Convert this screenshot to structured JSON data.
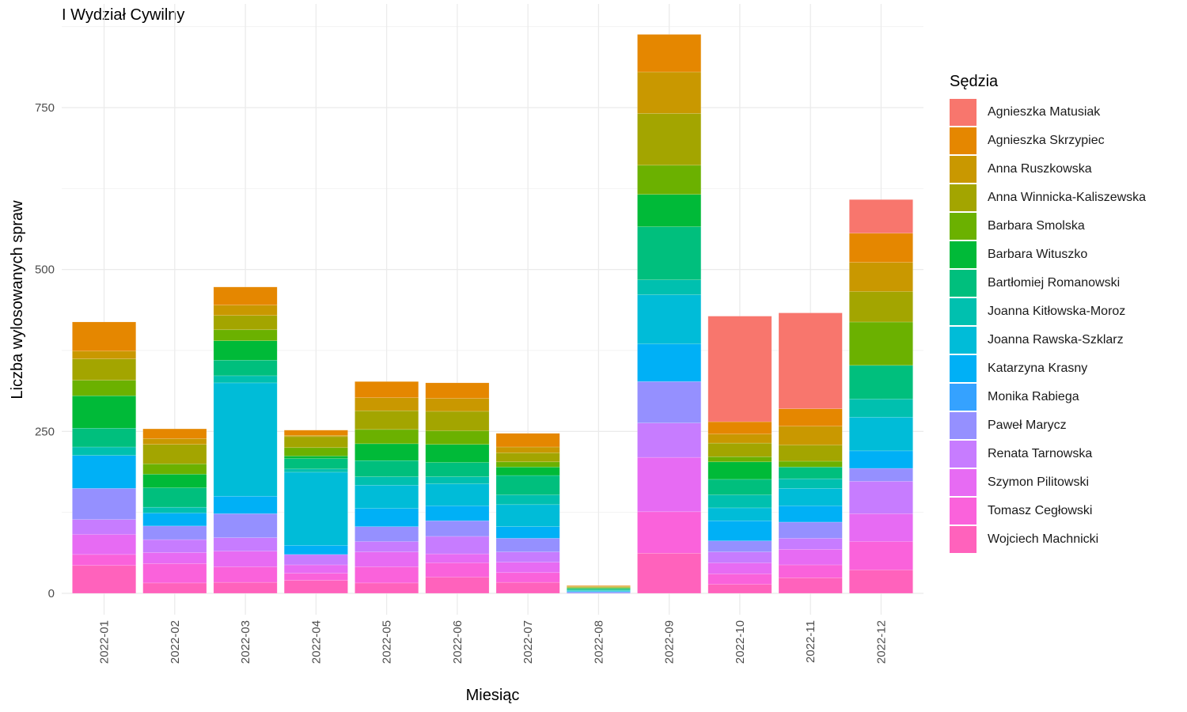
{
  "chart_data": {
    "type": "bar",
    "stacked": true,
    "title": "I Wydział Cywilny",
    "xlabel": "Miesiąc",
    "ylabel": "Liczba wylosowanych spraw",
    "ylim": [
      0,
      880
    ],
    "yticks": [
      0,
      250,
      500,
      750
    ],
    "grid": true,
    "legend_title": "Sędzia",
    "legend_position": "right",
    "categories": [
      "2022-01",
      "2022-02",
      "2022-03",
      "2022-04",
      "2022-05",
      "2022-06",
      "2022-07",
      "2022-08",
      "2022-09",
      "2022-10",
      "2022-11",
      "2022-12"
    ],
    "series": [
      {
        "name": "Agnieszka Matusiak",
        "color": "#F8766D",
        "values": [
          0,
          0,
          0,
          0,
          0,
          0,
          0,
          0,
          0,
          163,
          148,
          52
        ]
      },
      {
        "name": "Agnieszka Skrzypiec",
        "color": "#E58700",
        "values": [
          45,
          15,
          28,
          8,
          25,
          24,
          21,
          1,
          58,
          19,
          27,
          45
        ]
      },
      {
        "name": "Anna Ruszkowska",
        "color": "#C99800",
        "values": [
          12,
          9,
          16,
          2,
          20,
          20,
          9,
          1,
          64,
          14,
          29,
          45
        ]
      },
      {
        "name": "Anna Winnicka-Kaliszewska",
        "color": "#A3A500",
        "values": [
          33,
          30,
          22,
          17,
          29,
          30,
          14,
          1,
          80,
          21,
          25,
          47
        ]
      },
      {
        "name": "Barbara Smolska",
        "color": "#6BB100",
        "values": [
          24,
          16,
          17,
          13,
          22,
          21,
          8,
          1,
          45,
          8,
          9,
          67
        ]
      },
      {
        "name": "Barbara Wituszko",
        "color": "#00BA38",
        "values": [
          50,
          21,
          30,
          4,
          26,
          28,
          13,
          1,
          50,
          27,
          0,
          0
        ]
      },
      {
        "name": "Bartłomiej Romanowski",
        "color": "#00BF7D",
        "values": [
          29,
          30,
          24,
          16,
          25,
          22,
          30,
          2,
          82,
          24,
          18,
          52
        ]
      },
      {
        "name": "Joanna Kitłowska-Moroz",
        "color": "#00C0AF",
        "values": [
          13,
          9,
          11,
          5,
          13,
          11,
          15,
          1,
          23,
          20,
          15,
          28
        ]
      },
      {
        "name": "Joanna Rawska-Szklarz",
        "color": "#00BCD8",
        "values": [
          0,
          0,
          175,
          113,
          36,
          34,
          34,
          1,
          76,
          20,
          27,
          52
        ]
      },
      {
        "name": "Katarzyna Krasny",
        "color": "#00B0F6",
        "values": [
          51,
          20,
          27,
          14,
          28,
          23,
          18,
          1,
          58,
          31,
          25,
          27
        ]
      },
      {
        "name": "Monika Rabiega",
        "color": "#35A2FF",
        "values": [
          0,
          0,
          0,
          0,
          0,
          0,
          0,
          0,
          0,
          0,
          0,
          0
        ]
      },
      {
        "name": "Paweł Marycz",
        "color": "#9590FF",
        "values": [
          48,
          21,
          37,
          0,
          23,
          24,
          21,
          2,
          64,
          17,
          25,
          20
        ]
      },
      {
        "name": "Renata Tarnowska",
        "color": "#C77CFF",
        "values": [
          23,
          20,
          21,
          16,
          16,
          27,
          16,
          0,
          53,
          17,
          17,
          50
        ]
      },
      {
        "name": "Szymon Pilitowski",
        "color": "#E76BF3",
        "values": [
          31,
          17,
          24,
          13,
          23,
          14,
          16,
          0,
          84,
          17,
          24,
          43
        ]
      },
      {
        "name": "Tomasz Cegłowski",
        "color": "#FA62DB",
        "values": [
          17,
          30,
          24,
          11,
          25,
          22,
          15,
          0,
          64,
          16,
          20,
          44
        ]
      },
      {
        "name": "Wojciech Machnicki",
        "color": "#FF62BC",
        "values": [
          43,
          16,
          17,
          20,
          16,
          25,
          17,
          0,
          62,
          14,
          24,
          36
        ]
      }
    ]
  }
}
